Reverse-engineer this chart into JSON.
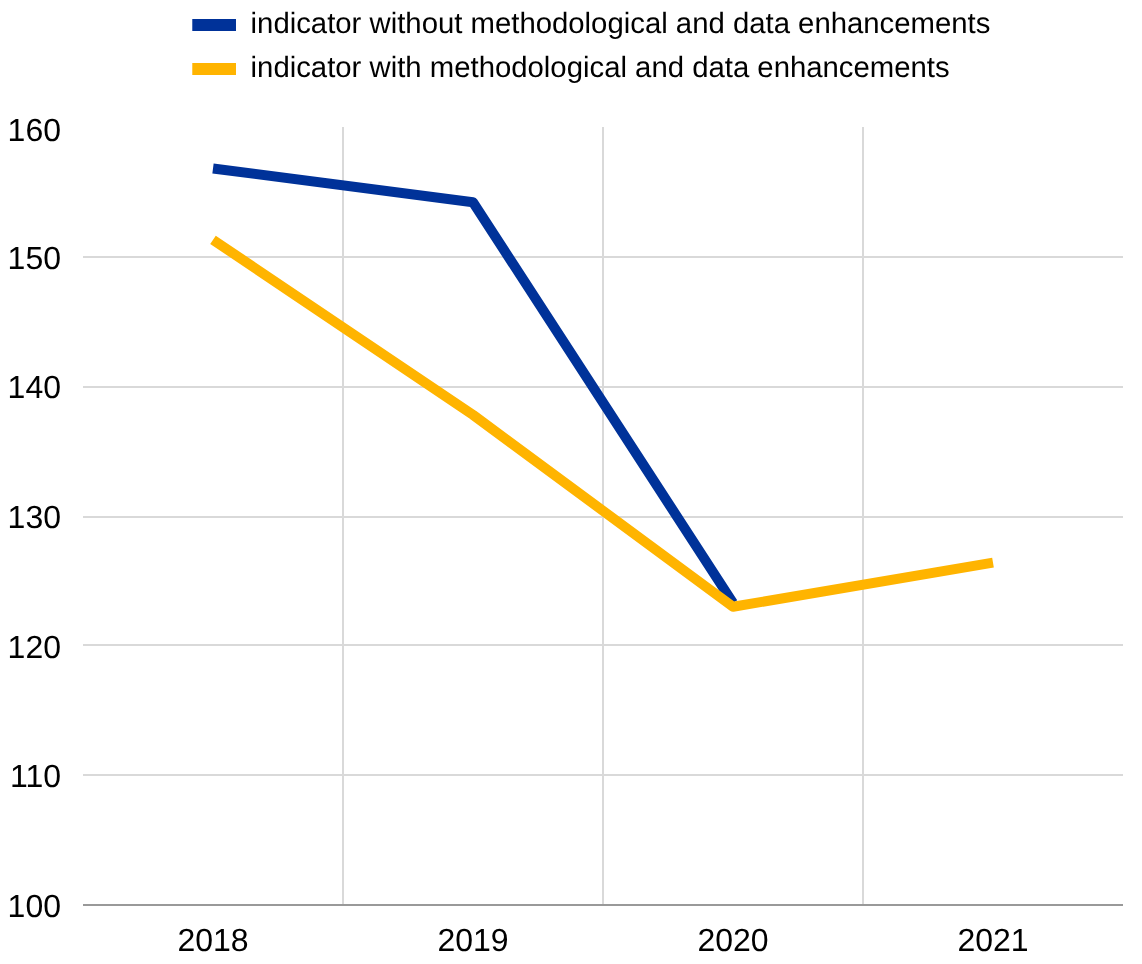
{
  "chart_data": {
    "type": "line",
    "categories": [
      "2018",
      "2019",
      "2020",
      "2021"
    ],
    "series": [
      {
        "name": "indicator without methodological and data enhancements",
        "color": "#003299",
        "values": [
          156.8,
          154.2,
          123.3,
          null
        ]
      },
      {
        "name": "indicator with methodological and data enhancements",
        "color": "#ffb400",
        "values": [
          151.3,
          137.8,
          123.0,
          126.4
        ]
      }
    ],
    "ylim": [
      100,
      160
    ],
    "yticks": [
      100,
      110,
      120,
      130,
      140,
      150,
      160
    ],
    "grid": true,
    "legend": "top",
    "marker": "none",
    "line_style": "solid"
  }
}
